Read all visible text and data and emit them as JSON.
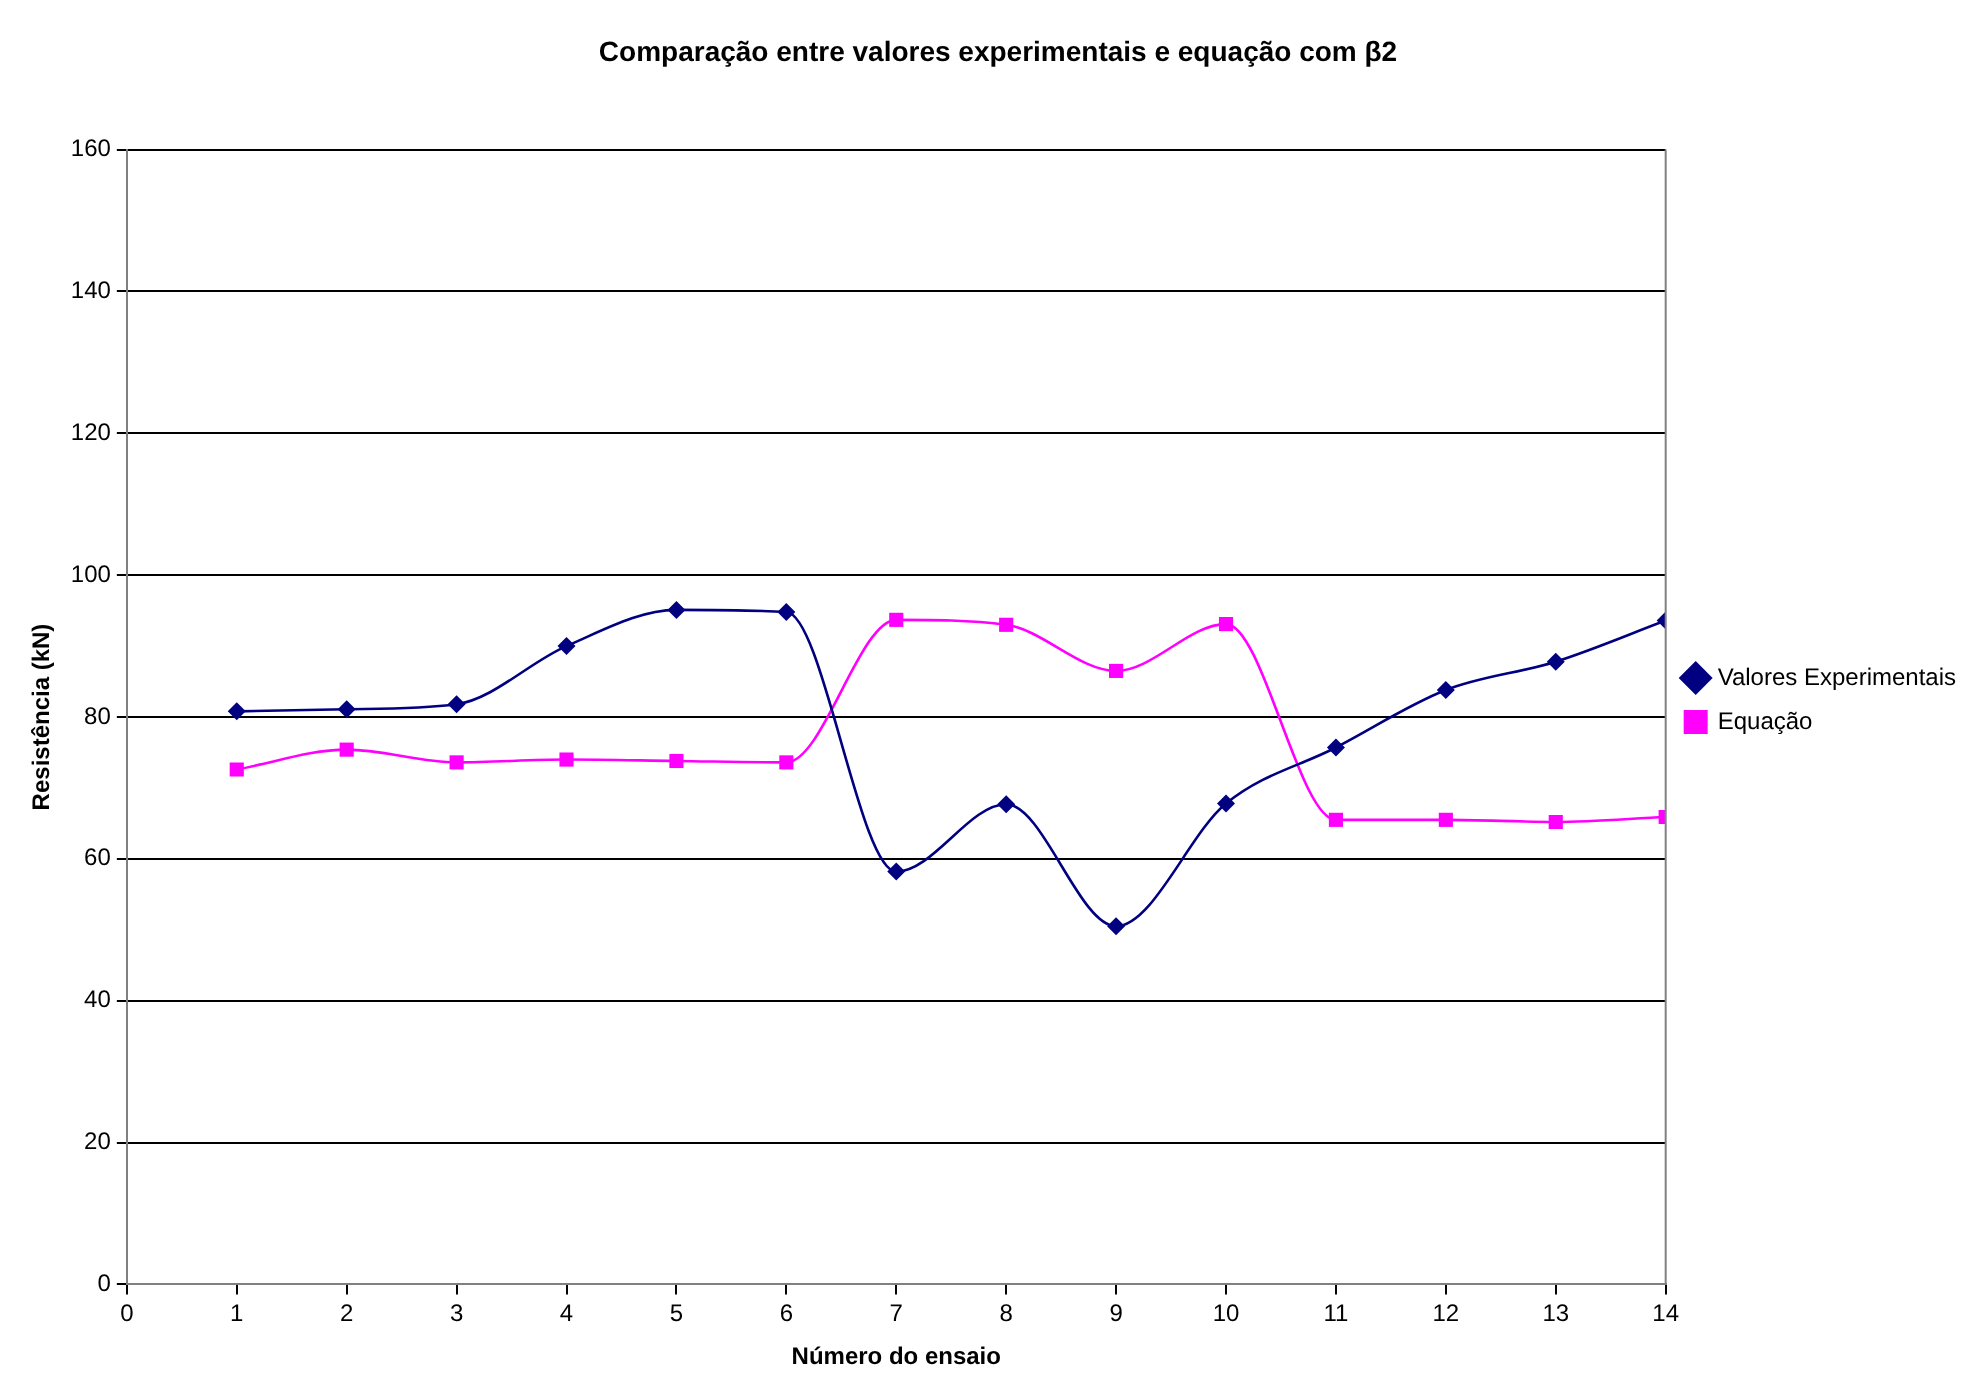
{
  "chart_data": {
    "type": "line",
    "title": "Comparação entre valores experimentais e equação com β2",
    "xlabel": "Número do ensaio",
    "ylabel": "Resistência (kN)",
    "x": [
      1,
      2,
      3,
      4,
      5,
      6,
      7,
      8,
      9,
      10,
      11,
      12,
      13,
      14
    ],
    "series": [
      {
        "name": "Valores Experimentais",
        "color": "#000080",
        "marker": "diamond",
        "values": [
          80.8,
          81.1,
          81.8,
          90.0,
          95.1,
          94.8,
          58.2,
          67.7,
          50.5,
          67.8,
          75.7,
          83.8,
          87.8,
          93.6
        ]
      },
      {
        "name": "Equação",
        "color": "#ff00ff",
        "marker": "square",
        "values": [
          72.6,
          75.4,
          73.6,
          74.0,
          73.8,
          73.6,
          93.7,
          93.0,
          86.5,
          93.1,
          65.5,
          65.5,
          65.2,
          65.9
        ]
      }
    ],
    "xlim": [
      0,
      14
    ],
    "xticks": [
      0,
      1,
      2,
      3,
      4,
      5,
      6,
      7,
      8,
      9,
      10,
      11,
      12,
      13,
      14
    ],
    "ylim": [
      0,
      160
    ],
    "yticks": [
      0,
      20,
      40,
      60,
      80,
      100,
      120,
      140,
      160
    ],
    "grid": "y",
    "legend": "right",
    "line_style": "solid"
  }
}
